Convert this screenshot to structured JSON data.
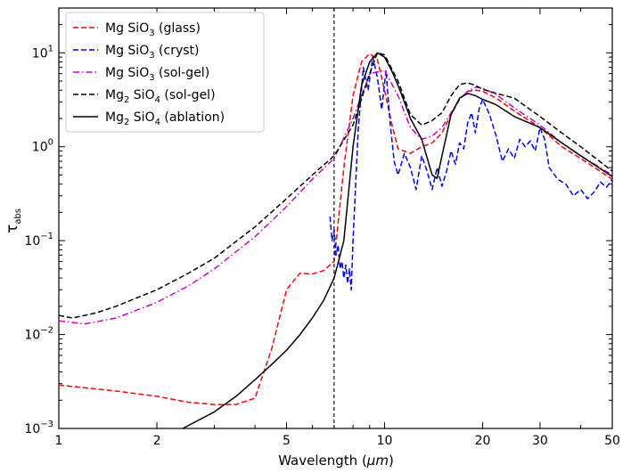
{
  "chart_data": {
    "type": "line",
    "xscale": "log",
    "yscale": "log",
    "xlabel_prefix": "Wavelength (",
    "xlabel_unit": "μm",
    "xlabel_suffix": ")",
    "ylabel_main": "τ",
    "ylabel_sub": "abs",
    "xlim": [
      1,
      50
    ],
    "ylim": [
      0.001,
      30
    ],
    "x_ticks": [
      1,
      2,
      5,
      10,
      20,
      30,
      50
    ],
    "x_tick_labels": [
      "1",
      "2",
      "5",
      "10",
      "20",
      "30",
      "50"
    ],
    "y_ticks": [
      0.001,
      0.01,
      0.1,
      1,
      10
    ],
    "y_tick_base": "10",
    "y_tick_exponents": [
      "−3",
      "−2",
      "−1",
      "0",
      "1"
    ],
    "vline_x": 7.0,
    "legend_location": "upper-left",
    "series": [
      {
        "name_parts": [
          "Mg SiO",
          "3",
          " (glass)"
        ],
        "color": "#ff0000",
        "style": "dashed",
        "x": [
          1.0,
          1.5,
          2.0,
          2.5,
          3.0,
          3.5,
          4.0,
          4.5,
          5.0,
          5.5,
          6.0,
          6.5,
          7.0,
          7.5,
          8.0,
          8.5,
          9.0,
          9.5,
          10.0,
          10.5,
          11.0,
          12.0,
          13.0,
          14.0,
          15.0,
          16.0,
          17.0,
          18.0,
          19.0,
          20.0,
          22.0,
          25.0,
          30.0,
          35.0,
          40.0,
          50.0
        ],
        "y": [
          0.0029,
          0.0025,
          0.0022,
          0.0019,
          0.0018,
          0.0018,
          0.0021,
          0.007,
          0.03,
          0.045,
          0.044,
          0.048,
          0.06,
          0.6,
          3.5,
          8.0,
          9.8,
          8.5,
          4.0,
          1.8,
          0.95,
          0.85,
          1.0,
          1.1,
          1.4,
          2.2,
          3.2,
          3.9,
          4.0,
          3.9,
          3.3,
          2.4,
          1.6,
          1.0,
          0.75,
          0.45
        ]
      },
      {
        "name_parts": [
          "Mg SiO",
          "3",
          " (cryst)"
        ],
        "color": "#0000ff",
        "style": "dashed",
        "x": [
          6.8,
          6.9,
          7.0,
          7.1,
          7.2,
          7.3,
          7.4,
          7.5,
          7.6,
          7.7,
          7.8,
          7.9,
          8.0,
          8.3,
          8.6,
          8.9,
          9.2,
          9.5,
          9.8,
          10.1,
          10.4,
          10.7,
          11.0,
          11.5,
          12.0,
          12.5,
          13.0,
          13.5,
          14.0,
          14.5,
          15.0,
          15.5,
          16.0,
          16.5,
          17.0,
          17.5,
          18.0,
          18.5,
          19.0,
          19.5,
          20.0,
          21.0,
          22.0,
          23.0,
          24.0,
          25.0,
          26.0,
          27.0,
          28.0,
          29.0,
          30.0,
          31.0,
          32.0,
          34.0,
          36.0,
          38.0,
          40.0,
          42.0,
          44.0,
          46.0,
          48.0,
          50.0
        ],
        "y": [
          0.18,
          0.1,
          0.13,
          0.07,
          0.09,
          0.05,
          0.06,
          0.04,
          0.055,
          0.035,
          0.05,
          0.03,
          0.1,
          1.5,
          7.0,
          4.0,
          9.0,
          5.5,
          2.5,
          6.5,
          1.8,
          0.7,
          0.5,
          0.85,
          0.6,
          0.35,
          0.8,
          0.55,
          0.35,
          0.6,
          0.38,
          0.55,
          0.9,
          0.65,
          1.1,
          0.95,
          1.8,
          2.3,
          1.4,
          2.5,
          3.2,
          2.2,
          1.3,
          0.7,
          0.95,
          0.75,
          1.2,
          1.0,
          1.15,
          0.9,
          1.6,
          1.2,
          0.6,
          0.45,
          0.4,
          0.3,
          0.35,
          0.28,
          0.33,
          0.42,
          0.37,
          0.45
        ]
      },
      {
        "name_parts": [
          "Mg SiO",
          "3",
          " (sol-gel)"
        ],
        "color": "#cc00cc",
        "style": "dashdot",
        "x": [
          1.0,
          1.2,
          1.5,
          2.0,
          2.5,
          3.0,
          4.0,
          5.0,
          6.0,
          7.0,
          8.0,
          9.0,
          10.0,
          11.0,
          12.0,
          13.0,
          14.0,
          15.0,
          16.0,
          17.0,
          18.0,
          19.0,
          20.0,
          22.0,
          25.0,
          30.0,
          35.0,
          40.0,
          50.0
        ],
        "y": [
          0.014,
          0.013,
          0.015,
          0.022,
          0.033,
          0.05,
          0.11,
          0.23,
          0.45,
          0.75,
          2.0,
          6.0,
          6.5,
          3.5,
          1.6,
          1.2,
          1.3,
          1.6,
          2.3,
          3.2,
          3.9,
          4.3,
          4.2,
          3.6,
          2.6,
          1.7,
          1.1,
          0.8,
          0.5
        ]
      },
      {
        "name_parts": [
          "Mg",
          "2",
          " SiO",
          "4",
          " (sol-gel)"
        ],
        "color": "#000000",
        "style": "dashed",
        "x": [
          1.0,
          1.1,
          1.2,
          1.3,
          1.5,
          2.0,
          2.5,
          3.0,
          4.0,
          5.0,
          6.0,
          7.0,
          8.0,
          9.0,
          9.5,
          10.0,
          11.0,
          12.0,
          13.0,
          14.0,
          15.0,
          16.0,
          17.0,
          18.0,
          19.0,
          20.0,
          22.0,
          25.0,
          30.0,
          35.0,
          40.0,
          50.0
        ],
        "y": [
          0.016,
          0.015,
          0.016,
          0.017,
          0.02,
          0.03,
          0.045,
          0.065,
          0.14,
          0.28,
          0.5,
          0.8,
          1.7,
          6.0,
          10.0,
          9.5,
          5.0,
          2.2,
          1.7,
          1.9,
          2.3,
          3.5,
          4.6,
          4.8,
          4.5,
          4.1,
          3.7,
          3.3,
          2.1,
          1.4,
          1.0,
          0.55
        ]
      },
      {
        "name_parts": [
          "Mg",
          "2",
          " SiO",
          "4",
          " (ablation)"
        ],
        "color": "#000000",
        "style": "solid",
        "x": [
          2.4,
          3.0,
          3.5,
          4.0,
          4.5,
          5.0,
          5.5,
          6.0,
          6.5,
          7.0,
          7.5,
          8.0,
          8.5,
          9.0,
          9.5,
          10.0,
          10.5,
          11.0,
          11.5,
          12.0,
          13.0,
          14.0,
          14.5,
          15.0,
          16.0,
          17.0,
          18.0,
          19.0,
          20.0,
          22.0,
          25.0,
          30.0,
          35.0,
          40.0,
          50.0
        ],
        "y": [
          0.001,
          0.0015,
          0.0022,
          0.0033,
          0.0048,
          0.0068,
          0.01,
          0.015,
          0.023,
          0.04,
          0.1,
          1.0,
          4.5,
          8.0,
          10.0,
          9.0,
          6.5,
          4.5,
          3.0,
          2.0,
          1.2,
          0.5,
          0.46,
          0.8,
          2.2,
          3.3,
          3.7,
          3.5,
          3.2,
          2.8,
          2.1,
          1.6,
          1.1,
          0.8,
          0.48
        ]
      }
    ]
  }
}
